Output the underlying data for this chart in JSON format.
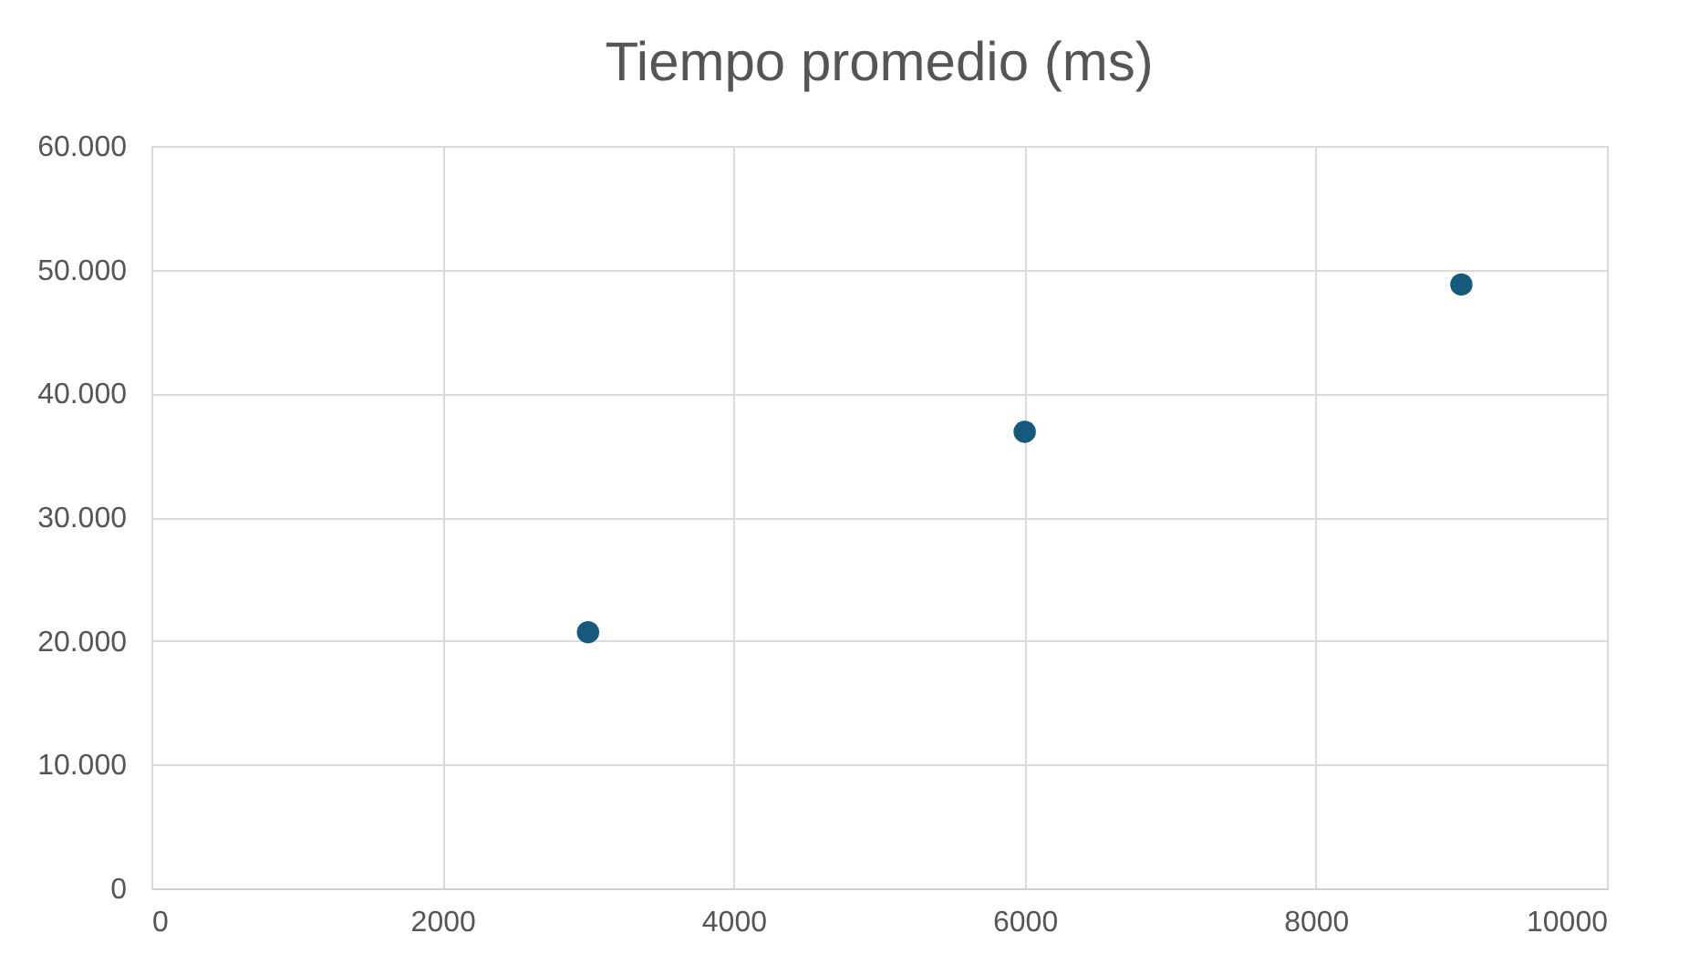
{
  "chart_data": {
    "type": "scatter",
    "title": "Tiempo promedio (ms)",
    "x": [
      3000,
      6000,
      9000
    ],
    "series": [
      {
        "color": "#155a7c",
        "values": [
          20700,
          36900,
          48800
        ]
      }
    ],
    "xlim": [
      0,
      10000
    ],
    "xticks": [
      0,
      2000,
      4000,
      6000,
      8000,
      10000
    ],
    "ylim": [
      0,
      60000
    ],
    "yticks": [
      0,
      {
        "value": 10000,
        "label": "10.000"
      },
      {
        "value": 20000,
        "label": "20.000"
      },
      {
        "value": 30000,
        "label": "30.000"
      },
      {
        "value": 40000,
        "label": "40.000"
      },
      {
        "value": 50000,
        "label": "50.000"
      },
      {
        "value": 60000,
        "label": "60.000"
      }
    ],
    "grid": true,
    "marker": "circle"
  }
}
